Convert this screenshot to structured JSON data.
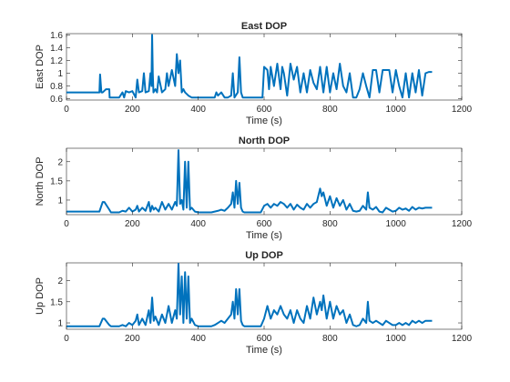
{
  "colors": {
    "series": "#0072BD",
    "axis": "#262626",
    "background": "#ffffff"
  },
  "chart_data": [
    {
      "type": "line",
      "title": "East DOP",
      "xlabel": "Time (s)",
      "ylabel": "East DOP",
      "xlim": [
        0,
        1200
      ],
      "ylim": [
        0.58,
        1.62
      ],
      "xticks": [
        0,
        200,
        400,
        600,
        800,
        1000,
        1200
      ],
      "yticks": [
        0.6,
        0.8,
        1,
        1.2,
        1.4,
        1.6
      ],
      "ytick_labels": [
        "0.6",
        "0.8",
        "1",
        "1.2",
        "1.4",
        "1.6"
      ],
      "grid": false,
      "series": [
        {
          "x": [
            0,
            100,
            102,
            106,
            110,
            120,
            130,
            131,
            136,
            140,
            160,
            170,
            175,
            180,
            190,
            200,
            210,
            215,
            220,
            230,
            235,
            240,
            250,
            255,
            258,
            260,
            262,
            264,
            270,
            275,
            280,
            290,
            300,
            305,
            310,
            320,
            330,
            335,
            340,
            345,
            350,
            355,
            360,
            370,
            380,
            390,
            400,
            420,
            440,
            450,
            455,
            460,
            470,
            480,
            490,
            500,
            505,
            510,
            520,
            525,
            530,
            535,
            540,
            550,
            560,
            580,
            590,
            595,
            600,
            610,
            615,
            620,
            630,
            640,
            650,
            655,
            660,
            670,
            680,
            690,
            700,
            710,
            720,
            730,
            740,
            750,
            760,
            770,
            780,
            790,
            800,
            810,
            820,
            830,
            840,
            850,
            860,
            870,
            880,
            890,
            900,
            910,
            920,
            930,
            940,
            950,
            960,
            970,
            980,
            990,
            1000,
            1010,
            1020,
            1030,
            1040,
            1050,
            1060,
            1070,
            1080,
            1090,
            1100,
            1110
          ],
          "y": [
            0.7,
            0.7,
            0.98,
            0.7,
            0.7,
            0.75,
            0.75,
            0.62,
            0.62,
            0.62,
            0.62,
            0.7,
            0.62,
            0.72,
            0.7,
            0.72,
            0.62,
            0.9,
            0.7,
            0.72,
            1.0,
            0.7,
            0.72,
            1.0,
            0.8,
            1.6,
            1.0,
            0.7,
            0.75,
            0.7,
            0.95,
            0.7,
            0.75,
            1.0,
            0.8,
            1.05,
            0.8,
            1.3,
            1.0,
            1.2,
            0.7,
            0.75,
            0.7,
            0.65,
            0.62,
            0.62,
            0.62,
            0.62,
            0.62,
            0.62,
            0.7,
            0.65,
            0.7,
            0.62,
            0.62,
            0.65,
            1.0,
            0.62,
            0.7,
            1.25,
            0.7,
            0.62,
            0.62,
            0.62,
            0.62,
            0.62,
            0.62,
            0.62,
            1.1,
            1.05,
            0.75,
            1.1,
            0.8,
            1.15,
            0.75,
            1.1,
            1.0,
            0.65,
            1.15,
            0.9,
            1.1,
            0.7,
            1.0,
            0.7,
            1.05,
            0.85,
            0.75,
            1.1,
            0.7,
            1.1,
            0.7,
            1.0,
            0.75,
            1.15,
            0.8,
            0.7,
            1.0,
            0.62,
            0.62,
            0.75,
            1.0,
            0.8,
            0.62,
            1.05,
            1.05,
            0.7,
            1.05,
            1.05,
            1.05,
            0.7,
            1.05,
            0.8,
            0.62,
            1.0,
            0.62,
            1.0,
            0.7,
            1.05,
            0.65,
            1.0,
            1.02,
            1.02
          ]
        }
      ]
    },
    {
      "type": "line",
      "title": "North DOP",
      "xlabel": "Time (s)",
      "ylabel": "North DOP",
      "xlim": [
        0,
        1200
      ],
      "ylim": [
        0.62,
        2.35
      ],
      "xticks": [
        0,
        200,
        400,
        600,
        800,
        1000,
        1200
      ],
      "yticks": [
        1,
        1.5,
        2
      ],
      "ytick_labels": [
        "1",
        "1.5",
        "2"
      ],
      "grid": false,
      "series": [
        {
          "x": [
            0,
            100,
            110,
            115,
            130,
            135,
            140,
            160,
            170,
            180,
            190,
            200,
            210,
            215,
            220,
            230,
            240,
            250,
            255,
            260,
            265,
            270,
            280,
            290,
            300,
            310,
            320,
            330,
            335,
            340,
            345,
            350,
            355,
            360,
            365,
            370,
            375,
            380,
            390,
            400,
            420,
            440,
            450,
            460,
            470,
            480,
            490,
            500,
            505,
            510,
            515,
            520,
            525,
            530,
            535,
            540,
            560,
            580,
            590,
            600,
            610,
            620,
            630,
            640,
            650,
            660,
            670,
            680,
            690,
            700,
            710,
            720,
            730,
            740,
            750,
            760,
            770,
            775,
            780,
            790,
            800,
            810,
            820,
            830,
            840,
            850,
            860,
            870,
            880,
            890,
            900,
            910,
            915,
            920,
            930,
            940,
            950,
            960,
            970,
            980,
            990,
            1000,
            1010,
            1020,
            1030,
            1040,
            1050,
            1060,
            1070,
            1080,
            1090,
            1100,
            1110
          ],
          "y": [
            0.7,
            0.7,
            0.95,
            0.95,
            0.75,
            0.68,
            0.68,
            0.68,
            0.72,
            0.7,
            0.8,
            0.7,
            0.75,
            0.85,
            0.7,
            0.8,
            0.72,
            0.95,
            0.7,
            0.85,
            0.75,
            0.8,
            0.7,
            0.95,
            0.75,
            0.9,
            0.75,
            0.95,
            0.85,
            2.3,
            0.9,
            1.0,
            0.75,
            2.0,
            0.8,
            2.0,
            0.75,
            0.8,
            0.7,
            0.68,
            0.68,
            0.68,
            0.7,
            0.72,
            0.75,
            0.72,
            0.8,
            0.9,
            1.2,
            0.8,
            1.5,
            0.9,
            1.45,
            0.8,
            0.7,
            0.68,
            0.68,
            0.68,
            0.68,
            0.85,
            0.9,
            0.8,
            0.9,
            0.85,
            0.95,
            0.9,
            0.8,
            0.9,
            0.75,
            0.88,
            0.8,
            0.75,
            0.9,
            0.8,
            0.9,
            0.95,
            1.3,
            1.1,
            1.2,
            0.85,
            1.1,
            0.8,
            1.05,
            0.85,
            1.0,
            0.75,
            0.9,
            0.72,
            0.7,
            0.72,
            0.85,
            0.75,
            1.2,
            0.8,
            0.75,
            0.82,
            0.7,
            0.68,
            0.8,
            0.75,
            0.7,
            0.72,
            0.8,
            0.75,
            0.78,
            0.72,
            0.82,
            0.75,
            0.8,
            0.78,
            0.8,
            0.8,
            0.8
          ]
        }
      ]
    },
    {
      "type": "line",
      "title": "Up DOP",
      "xlabel": "Time (s)",
      "ylabel": "Up DOP",
      "xlim": [
        0,
        1200
      ],
      "ylim": [
        0.85,
        2.42
      ],
      "xticks": [
        0,
        200,
        400,
        600,
        800,
        1000,
        1200
      ],
      "yticks": [
        1,
        1.5,
        2
      ],
      "ytick_labels": [
        "1",
        "1.5",
        "2"
      ],
      "grid": false,
      "series": [
        {
          "x": [
            0,
            100,
            110,
            115,
            130,
            135,
            140,
            160,
            170,
            180,
            190,
            200,
            210,
            215,
            220,
            230,
            240,
            250,
            255,
            260,
            265,
            270,
            280,
            290,
            300,
            310,
            320,
            330,
            335,
            340,
            345,
            350,
            355,
            360,
            365,
            370,
            375,
            380,
            390,
            400,
            420,
            440,
            450,
            460,
            470,
            480,
            490,
            500,
            505,
            510,
            515,
            520,
            525,
            530,
            535,
            540,
            560,
            580,
            590,
            600,
            610,
            620,
            630,
            640,
            650,
            660,
            670,
            680,
            690,
            700,
            710,
            720,
            730,
            740,
            750,
            760,
            770,
            775,
            780,
            790,
            800,
            810,
            820,
            830,
            840,
            850,
            860,
            870,
            880,
            890,
            900,
            910,
            915,
            920,
            930,
            940,
            950,
            960,
            970,
            980,
            990,
            1000,
            1010,
            1020,
            1030,
            1040,
            1050,
            1060,
            1070,
            1080,
            1090,
            1100,
            1110
          ],
          "y": [
            0.92,
            0.92,
            1.1,
            1.1,
            0.95,
            0.92,
            0.92,
            0.92,
            0.95,
            0.92,
            1.0,
            0.95,
            1.05,
            1.2,
            0.95,
            1.1,
            0.95,
            1.3,
            1.0,
            1.6,
            1.05,
            1.15,
            0.95,
            1.2,
            1.0,
            1.4,
            1.0,
            1.3,
            1.1,
            2.4,
            1.2,
            2.1,
            1.0,
            2.2,
            1.1,
            2.1,
            1.0,
            1.1,
            0.95,
            0.92,
            0.92,
            0.92,
            0.95,
            1.0,
            1.05,
            1.0,
            1.1,
            1.2,
            1.5,
            1.1,
            1.8,
            1.2,
            1.8,
            1.05,
            0.95,
            0.92,
            0.92,
            0.92,
            0.92,
            1.1,
            1.4,
            1.1,
            1.3,
            1.2,
            1.4,
            1.2,
            1.1,
            1.3,
            1.0,
            1.3,
            1.1,
            1.0,
            1.4,
            1.1,
            1.6,
            1.2,
            1.5,
            1.3,
            1.65,
            1.1,
            1.5,
            1.1,
            1.4,
            1.2,
            1.3,
            1.0,
            1.2,
            0.95,
            0.92,
            0.95,
            1.1,
            1.0,
            1.5,
            1.05,
            1.0,
            1.05,
            1.0,
            0.95,
            1.05,
            1.0,
            0.95,
            0.95,
            1.0,
            0.95,
            1.0,
            0.95,
            1.05,
            1.0,
            1.05,
            1.0,
            1.05,
            1.05,
            1.05
          ]
        }
      ]
    }
  ]
}
